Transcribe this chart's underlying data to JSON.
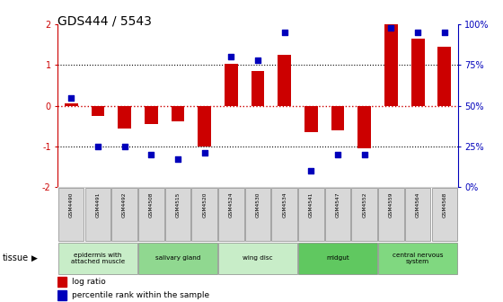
{
  "title": "GDS444 / 5543",
  "samples": [
    "GSM4490",
    "GSM4491",
    "GSM4492",
    "GSM4508",
    "GSM4515",
    "GSM4520",
    "GSM4524",
    "GSM4530",
    "GSM4534",
    "GSM4541",
    "GSM4547",
    "GSM4552",
    "GSM4559",
    "GSM4564",
    "GSM4568"
  ],
  "log_ratio": [
    0.05,
    -0.25,
    -0.55,
    -0.45,
    -0.38,
    -1.0,
    1.02,
    0.85,
    1.25,
    -0.65,
    -0.6,
    -1.05,
    2.0,
    1.65,
    1.45
  ],
  "percentile": [
    55,
    25,
    25,
    20,
    17,
    21,
    80,
    78,
    95,
    10,
    20,
    20,
    98,
    95,
    95
  ],
  "tissue_groups": [
    {
      "label": "epidermis with\nattached muscle",
      "start": 0,
      "end": 2,
      "color": "#c8edc8"
    },
    {
      "label": "salivary gland",
      "start": 3,
      "end": 5,
      "color": "#90d890"
    },
    {
      "label": "wing disc",
      "start": 6,
      "end": 8,
      "color": "#c8edc8"
    },
    {
      "label": "midgut",
      "start": 9,
      "end": 11,
      "color": "#60c860"
    },
    {
      "label": "central nervous\nsystem",
      "start": 12,
      "end": 14,
      "color": "#80d880"
    }
  ],
  "bar_color": "#cc0000",
  "dot_color": "#0000bb",
  "ylim": [
    -2.0,
    2.0
  ],
  "y2lim": [
    0,
    100
  ],
  "yticks": [
    -2,
    -1,
    0,
    1,
    2
  ],
  "y2ticks": [
    0,
    25,
    50,
    75,
    100
  ],
  "y2tick_labels": [
    "0%",
    "25%",
    "50%",
    "75%",
    "100%"
  ],
  "dotline_y": [
    -1.0,
    1.0
  ],
  "legend_log_ratio": "log ratio",
  "legend_percentile": "percentile rank within the sample",
  "tick_color_left": "#cc0000",
  "tick_color_right": "#0000bb",
  "sample_box_color": "#d8d8d8",
  "title_fontsize": 10
}
